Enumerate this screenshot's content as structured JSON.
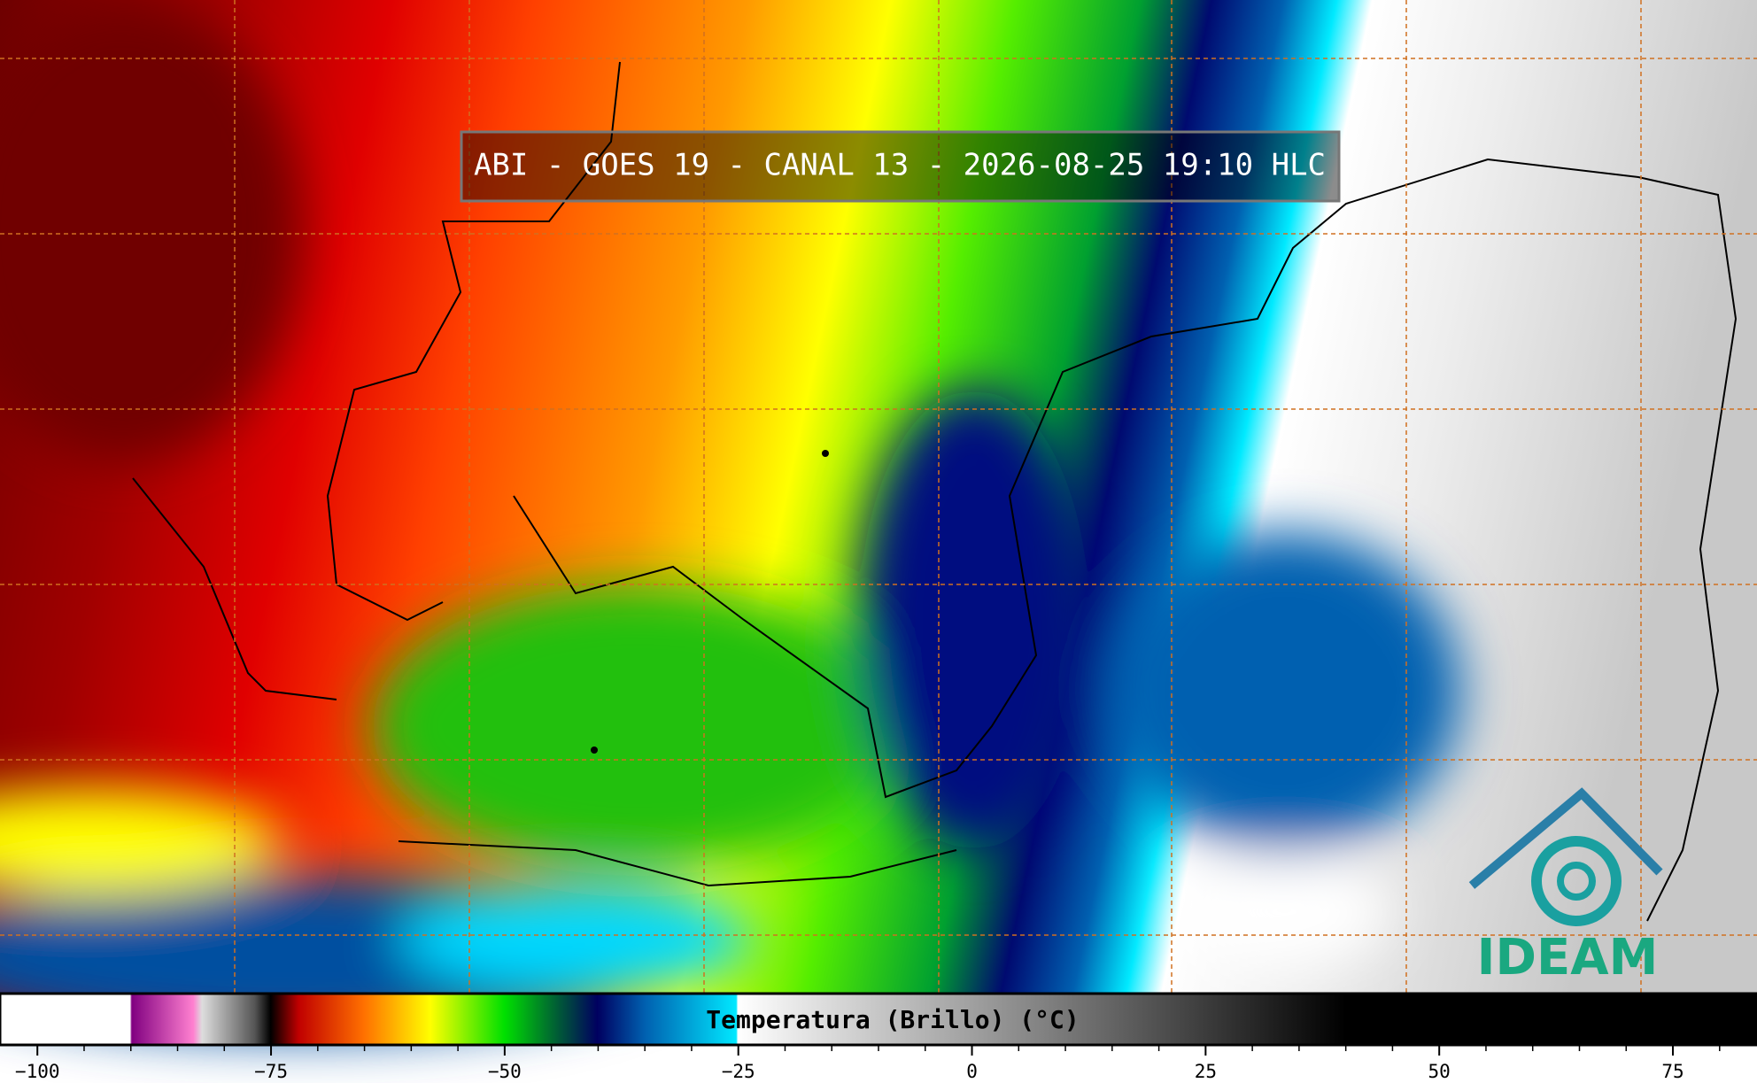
{
  "title": "ABI - GOES 19 - CANAL 13 - 2026-08-25 19:10 HLC",
  "colorbar": {
    "label": "Temperatura (Brillo) (°C)",
    "xlim": [
      -104,
      84
    ],
    "ticks": [
      {
        "value": -100,
        "label": "−100"
      },
      {
        "value": -75,
        "label": "−75"
      },
      {
        "value": -50,
        "label": "−50"
      },
      {
        "value": -25,
        "label": "−25"
      },
      0,
      25,
      50,
      75
    ]
  },
  "logo": "IDEAM"
}
